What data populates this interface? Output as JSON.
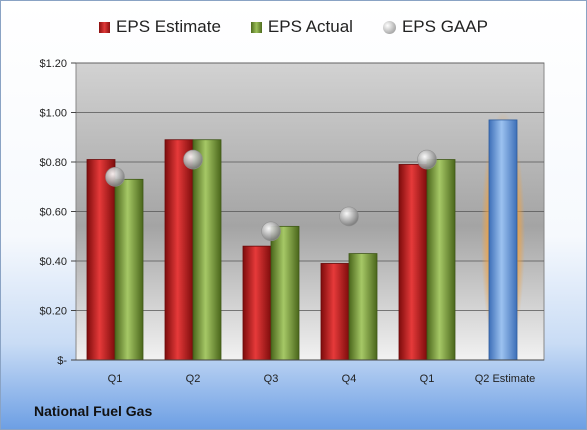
{
  "company": "National Fuel Gas",
  "legend": {
    "estimate": "EPS Estimate",
    "actual": "EPS Actual",
    "gaap": "EPS GAAP"
  },
  "colors": {
    "estimate": "#c41a1a",
    "actual": "#7ea33c",
    "gaap": "#a8a8a8",
    "future_estimate": "#6a9fe0",
    "highlight": "#f5a23c"
  },
  "chart_data": {
    "type": "bar",
    "categories": [
      "Q1",
      "Q2",
      "Q3",
      "Q4",
      "Q1",
      "Q2 Estimate"
    ],
    "series": [
      {
        "name": "EPS Estimate",
        "values": [
          0.81,
          0.89,
          0.46,
          0.39,
          0.79,
          0.97
        ]
      },
      {
        "name": "EPS Actual",
        "values": [
          0.73,
          0.89,
          0.54,
          0.43,
          0.81,
          null
        ]
      },
      {
        "name": "EPS GAAP",
        "values": [
          0.74,
          0.81,
          0.52,
          0.58,
          0.81,
          null
        ]
      }
    ],
    "ylim": [
      0,
      1.2
    ],
    "yticks": [
      0,
      0.2,
      0.4,
      0.6,
      0.8,
      1.0,
      1.2
    ],
    "ytick_labels": [
      "$-",
      "$0.20",
      "$0.40",
      "$0.60",
      "$0.80",
      "$1.00",
      "$1.20"
    ],
    "grid": true,
    "legend_position": "top"
  }
}
